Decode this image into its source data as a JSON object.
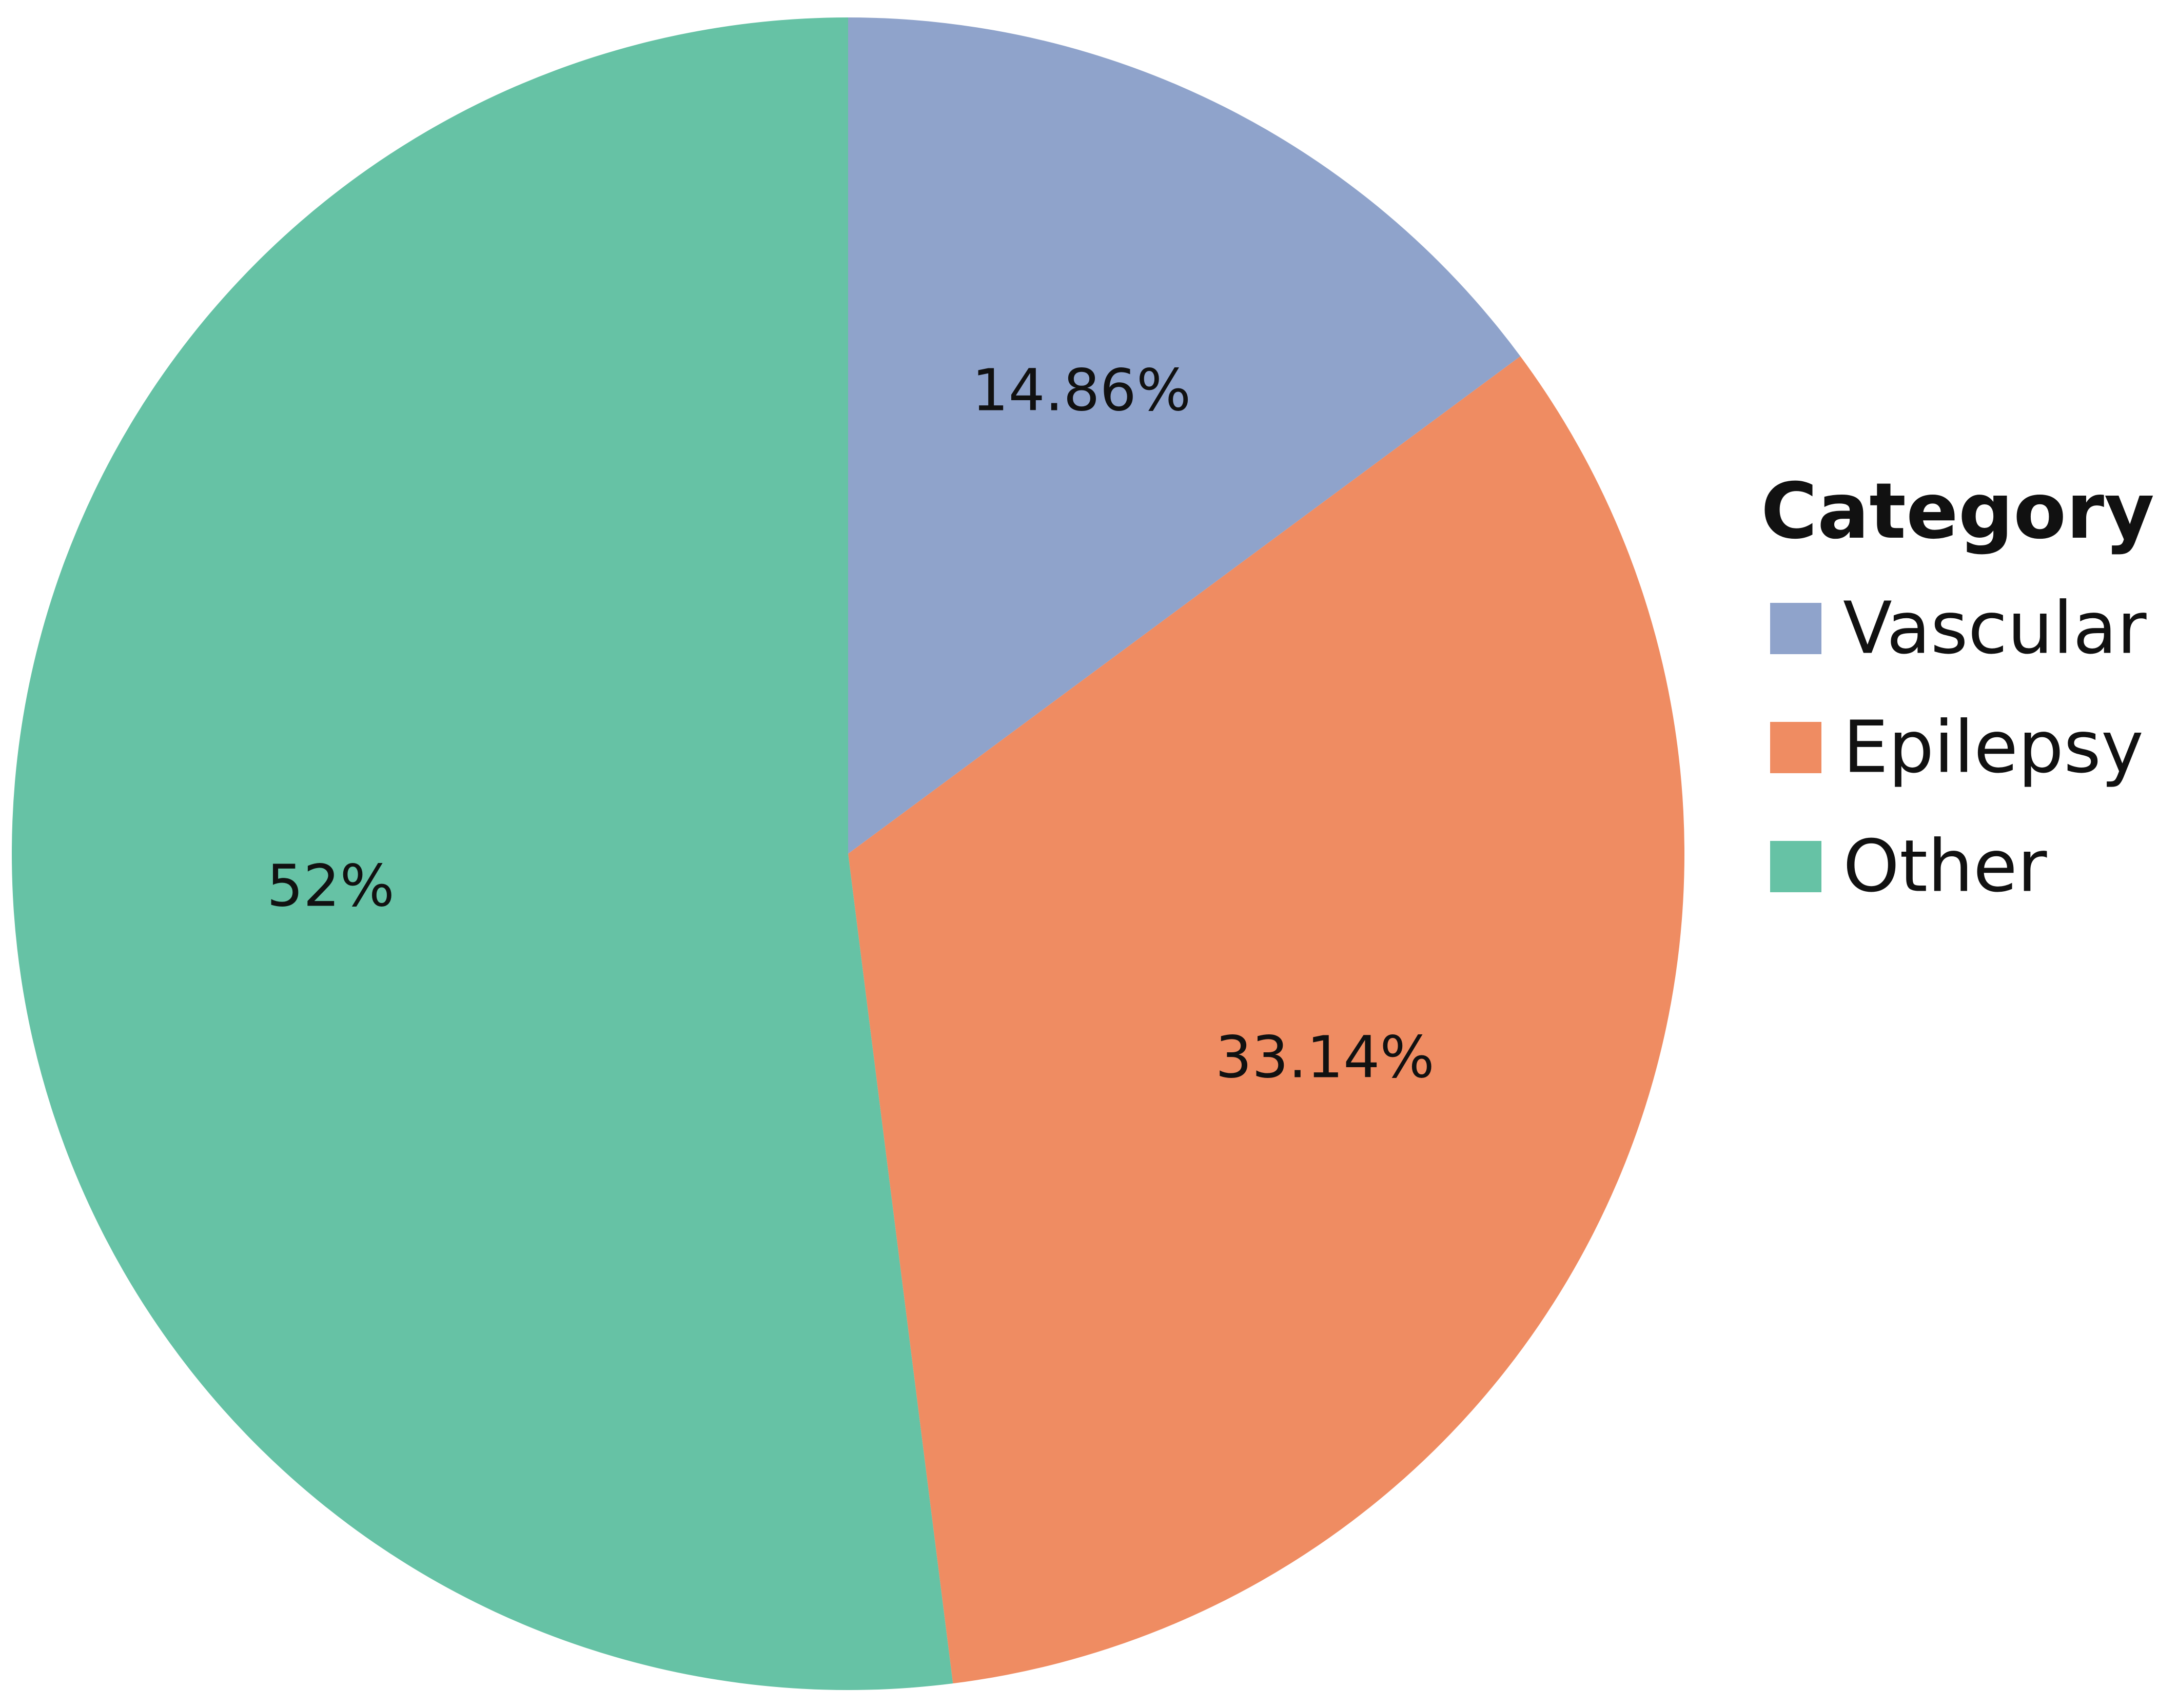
{
  "chart_data": {
    "type": "pie",
    "categories": [
      "Vascular",
      "Epilepsy",
      "Other"
    ],
    "values": [
      14.86,
      33.14,
      52
    ],
    "data_labels": [
      "14.86%",
      "33.14%",
      "52%"
    ],
    "colors": [
      "#8fa3cb",
      "#ef8c62",
      "#66c2a5"
    ],
    "legend": {
      "title": "Category",
      "position": "right"
    },
    "start": "12 o'clock",
    "direction": "clockwise"
  }
}
